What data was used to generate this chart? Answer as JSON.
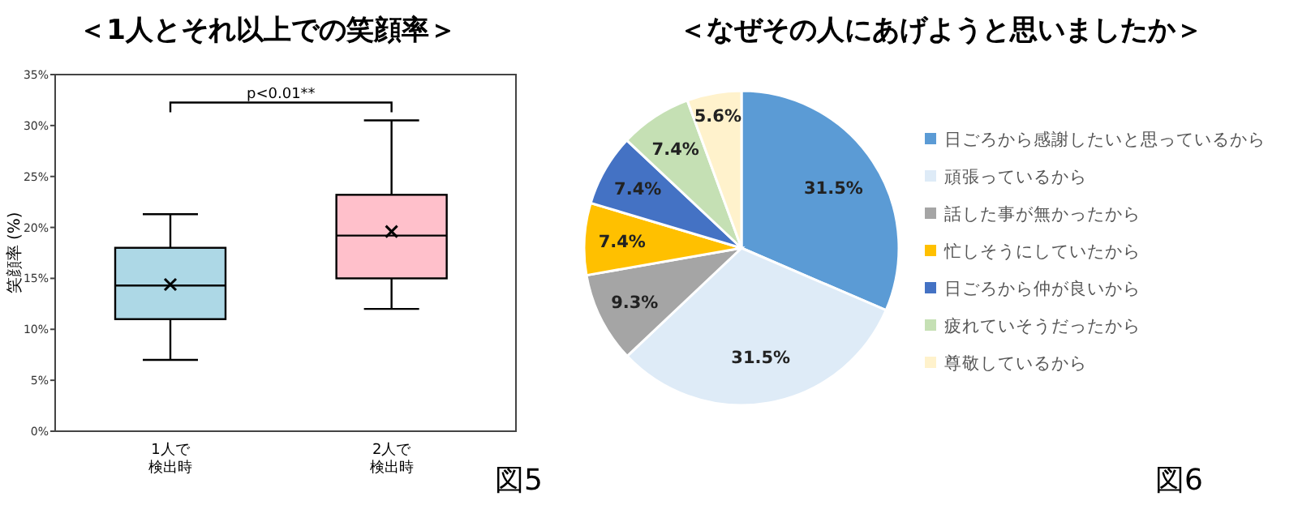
{
  "chart_data": [
    {
      "type": "box",
      "title": "＜1人とそれ以上での笑顔率＞",
      "ylabel": "笑顔率 (%)",
      "categories": [
        "1人で検出時",
        "2人で検出時"
      ],
      "colors": [
        "#add8e6",
        "#ffc0cb"
      ],
      "boxes": [
        {
          "low": 7,
          "q1": 11,
          "median": 14.3,
          "q3": 18,
          "high": 21.3,
          "mean": 14.4
        },
        {
          "low": 12,
          "q1": 15,
          "median": 19.2,
          "q3": 23.2,
          "high": 30.5,
          "mean": 19.6
        }
      ],
      "ylim": [
        0,
        35
      ],
      "yticks": [
        {
          "value": 0,
          "label": "0%"
        },
        {
          "value": 5,
          "label": "5%"
        },
        {
          "value": 10,
          "label": "10%"
        },
        {
          "value": 15,
          "label": "15%"
        },
        {
          "value": 20,
          "label": "20%"
        },
        {
          "value": 25,
          "label": "25%"
        },
        {
          "value": 30,
          "label": "30%"
        },
        {
          "value": 35,
          "label": "35%"
        }
      ],
      "marker": "cross",
      "grid": false,
      "annotations": [
        "p<0.01**",
        "図5"
      ]
    },
    {
      "type": "pie",
      "title": "＜なぜその人にあげようと思いましたか＞",
      "categories": [
        "日ごろから感謝したいと思っているから",
        "頑張っているから",
        "話した事が無かったから",
        "忙しそうにしていたから",
        "日ごろから仲が良いから",
        "疲れていそうだったから",
        "尊敬しているから"
      ],
      "values": [
        31.5,
        31.5,
        9.3,
        7.4,
        7.4,
        7.4,
        5.6
      ],
      "colors": [
        "#5b9bd5",
        "#deebf7",
        "#a5a5a5",
        "#ffc000",
        "#4472c4",
        "#c5e0b4",
        "#fff2cc"
      ],
      "value_labels": [
        "31.5%",
        "31.5%",
        "9.3%",
        "7.4%",
        "7.4%",
        "7.4%",
        "5.6%"
      ],
      "legend": "right",
      "annotations": [
        "図6"
      ]
    }
  ]
}
